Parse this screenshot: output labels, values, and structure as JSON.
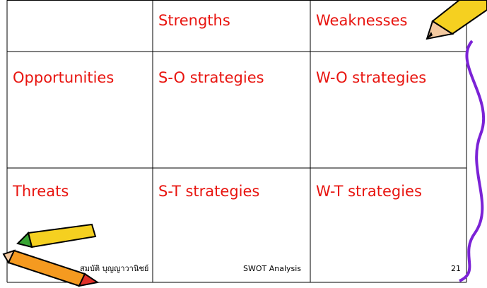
{
  "table": {
    "columns": [
      "Strengths",
      "Weaknesses"
    ],
    "rows": [
      [
        "Opportunities",
        "S-O strategies",
        "W-O strategies"
      ],
      [
        "Threats",
        "S-T strategies",
        "W-T strategies"
      ]
    ]
  },
  "footer": {
    "author": "สมบัติ บุญญาวานิชย์",
    "title": "SWOT Analysis",
    "page": 21
  }
}
